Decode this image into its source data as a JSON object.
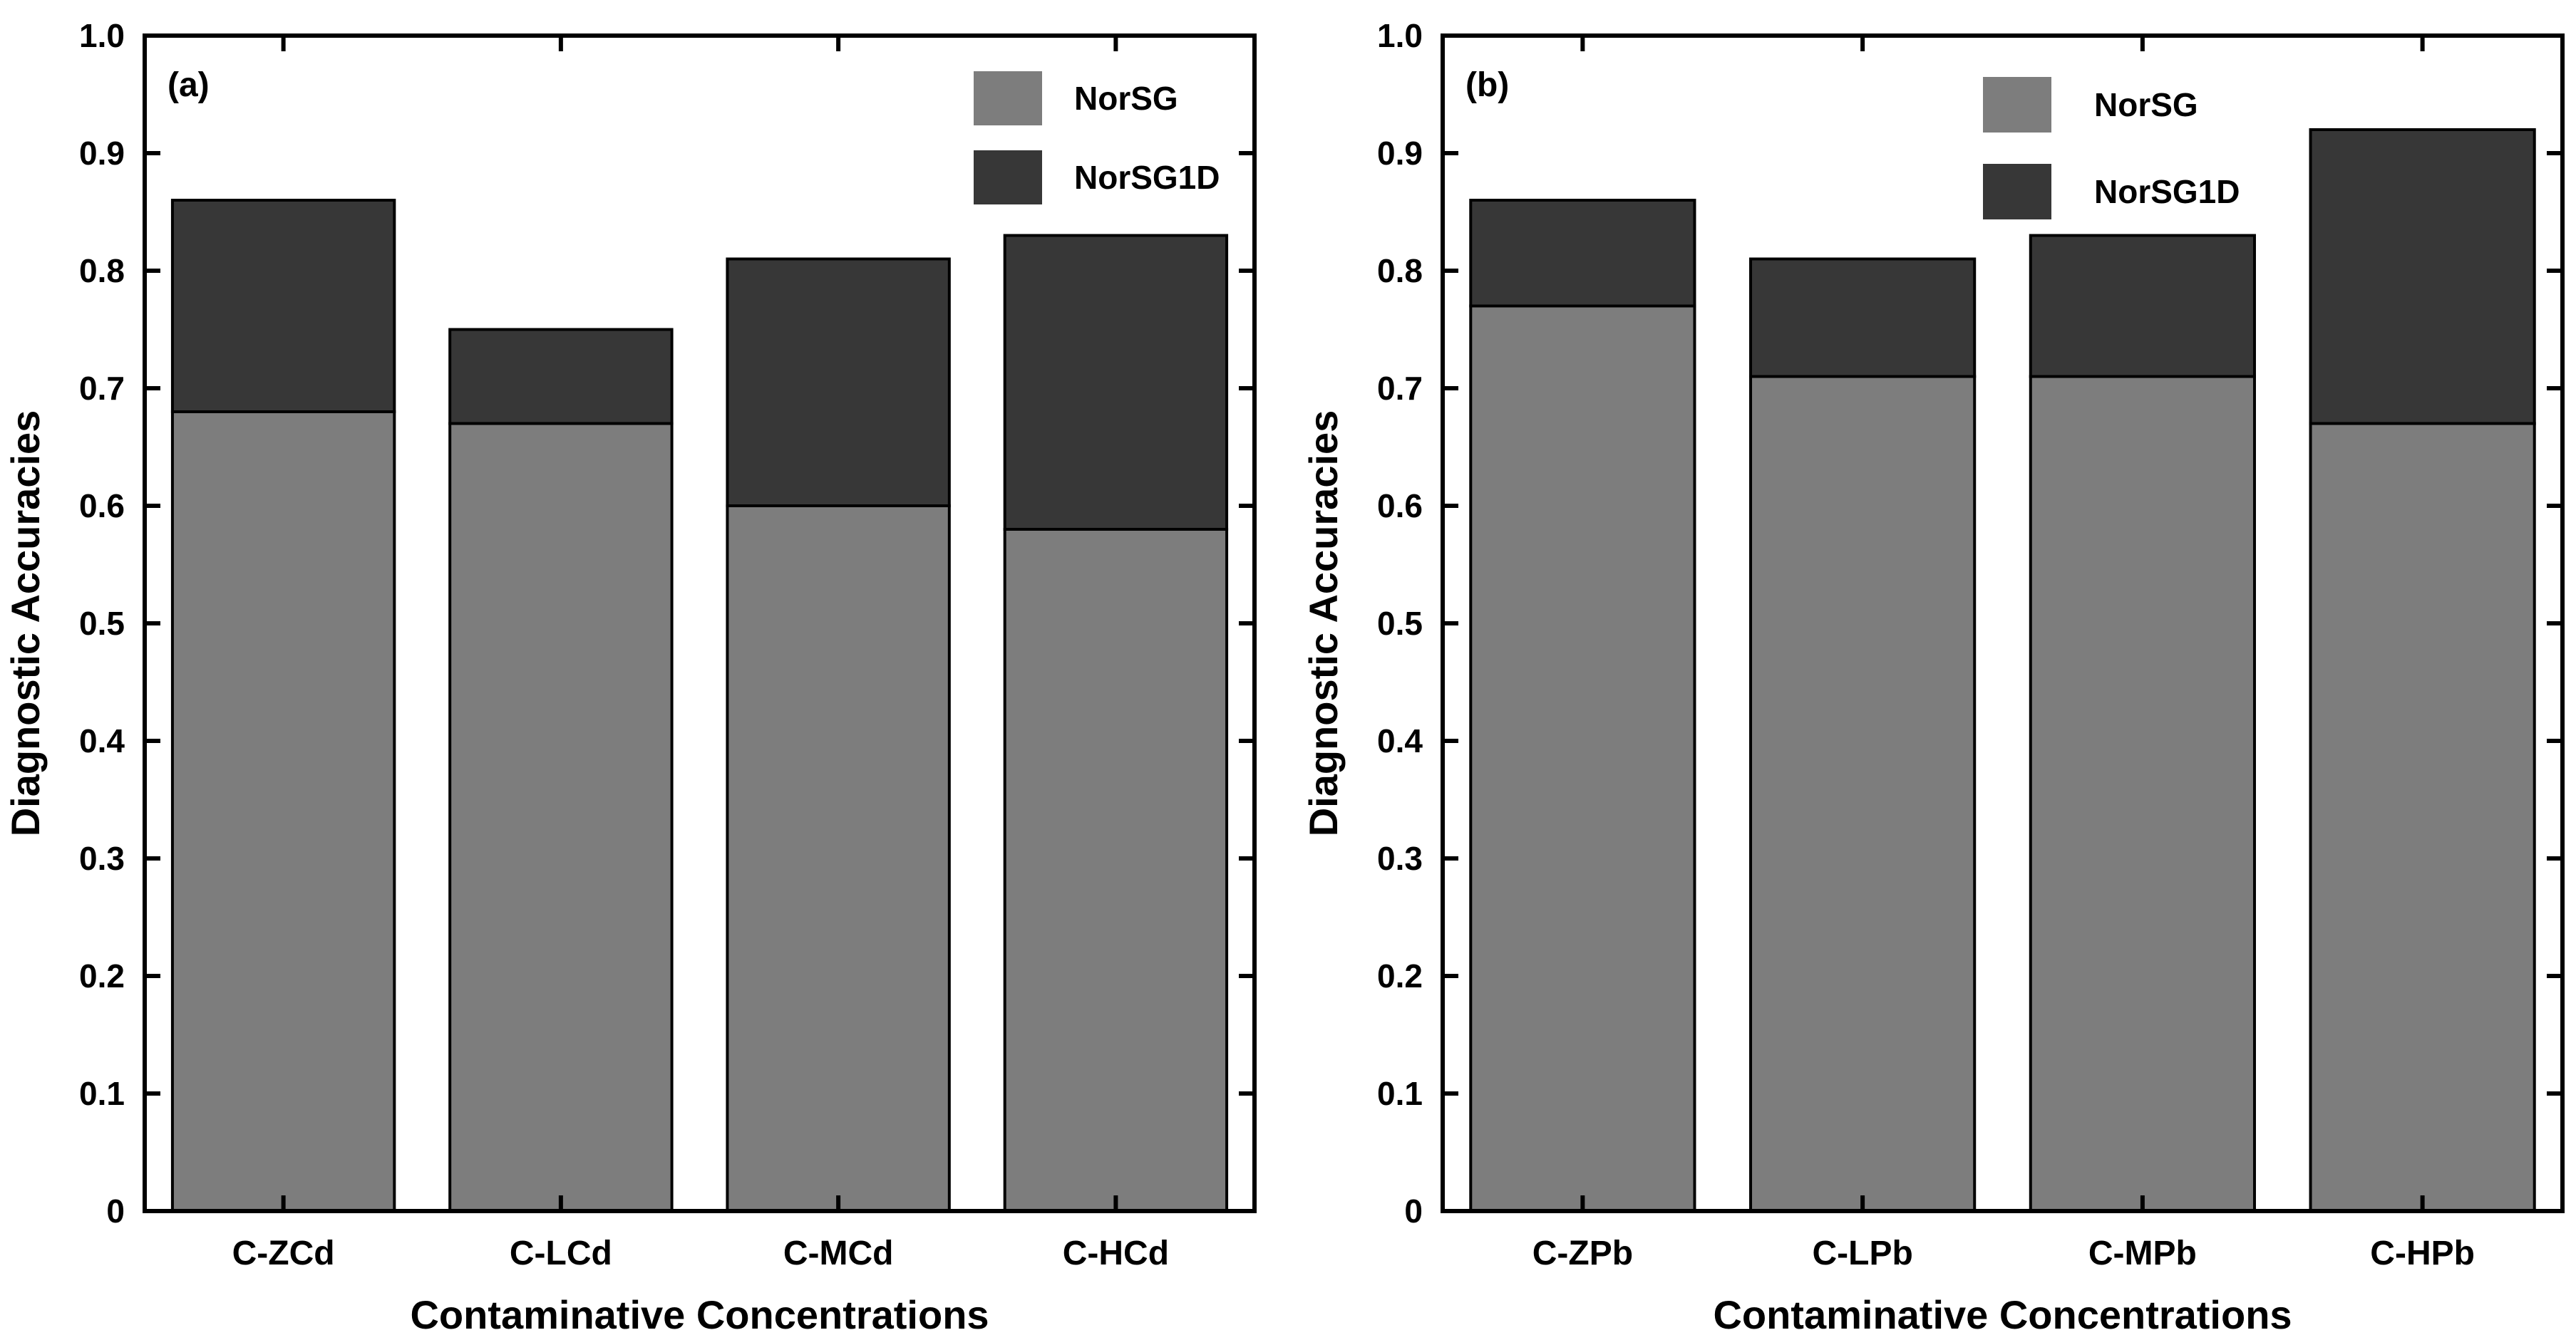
{
  "figure": {
    "background_color": "#ffffff",
    "axis_color": "#000000",
    "text_color": "#000000"
  },
  "chart_data": [
    {
      "type": "bar",
      "panel_label": "(a)",
      "stacked": true,
      "categories": [
        "C-ZCd",
        "C-LCd",
        "C-MCd",
        "C-HCd"
      ],
      "series": [
        {
          "name": "NorSG",
          "color": "#7d7d7d",
          "values": [
            0.68,
            0.67,
            0.6,
            0.58
          ]
        },
        {
          "name": "NorSG1D",
          "color": "#373737",
          "stack_top_values": [
            0.86,
            0.75,
            0.81,
            0.83
          ]
        }
      ],
      "xlabel": "Contaminative Concentrations",
      "ylabel": "Diagnostic Accuracies",
      "ylim": [
        0,
        1.0
      ],
      "yticks": [
        0,
        0.1,
        0.2,
        0.3,
        0.4,
        0.5,
        0.6,
        0.7,
        0.8,
        0.9,
        1.0
      ],
      "ytick_labels": [
        "0",
        "0.1",
        "0.2",
        "0.3",
        "0.4",
        "0.5",
        "0.6",
        "0.7",
        "0.8",
        "0.9",
        "1.0"
      ],
      "grid": false,
      "legend": {
        "entries": [
          "NorSG",
          "NorSG1D"
        ],
        "position": "upper-right-inside"
      }
    },
    {
      "type": "bar",
      "panel_label": "(b)",
      "stacked": true,
      "categories": [
        "C-ZPb",
        "C-LPb",
        "C-MPb",
        "C-HPb"
      ],
      "series": [
        {
          "name": "NorSG",
          "color": "#7d7d7d",
          "values": [
            0.77,
            0.71,
            0.71,
            0.67
          ]
        },
        {
          "name": "NorSG1D",
          "color": "#373737",
          "stack_top_values": [
            0.86,
            0.81,
            0.83,
            0.92
          ]
        }
      ],
      "xlabel": "Contaminative Concentrations",
      "ylabel": "Diagnostic Accuracies",
      "ylim": [
        0,
        1.0
      ],
      "yticks": [
        0,
        0.1,
        0.2,
        0.3,
        0.4,
        0.5,
        0.6,
        0.7,
        0.8,
        0.9,
        1.0
      ],
      "ytick_labels": [
        "0",
        "0.1",
        "0.2",
        "0.3",
        "0.4",
        "0.5",
        "0.6",
        "0.7",
        "0.8",
        "0.9",
        "1.0"
      ],
      "grid": false,
      "legend": {
        "entries": [
          "NorSG",
          "NorSG1D"
        ],
        "position": "upper-center-inside"
      }
    }
  ]
}
